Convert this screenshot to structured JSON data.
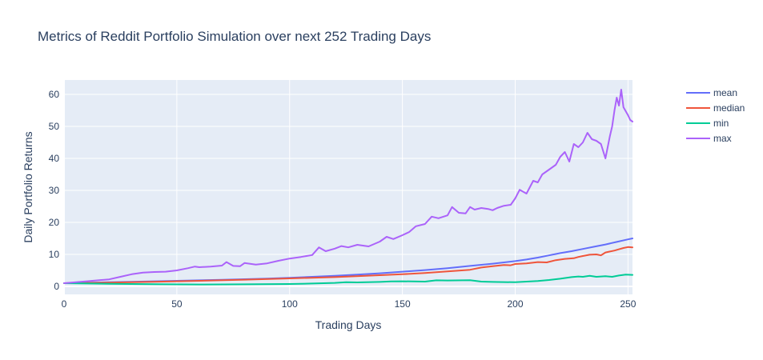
{
  "chart_data": {
    "type": "line",
    "title": "Metrics of Reddit Portfolio Simulation over next 252 Trading Days",
    "xlabel": "Trading Days",
    "ylabel": "Daily Portfolio Returns",
    "xlim": [
      0,
      252
    ],
    "ylim": [
      -2.5,
      64.5
    ],
    "xticks": [
      0,
      50,
      100,
      150,
      200,
      250
    ],
    "yticks": [
      0,
      10,
      20,
      30,
      40,
      50,
      60
    ],
    "grid": true,
    "legend_position": "top-right",
    "series": [
      {
        "name": "mean",
        "color": "#636efa",
        "x": [
          0,
          10,
          20,
          30,
          40,
          50,
          60,
          70,
          80,
          90,
          100,
          110,
          120,
          130,
          140,
          150,
          160,
          170,
          180,
          190,
          200,
          205,
          210,
          215,
          220,
          225,
          230,
          235,
          240,
          245,
          250,
          252
        ],
        "y": [
          1.0,
          1.15,
          1.3,
          1.45,
          1.6,
          1.75,
          1.9,
          2.05,
          2.25,
          2.45,
          2.7,
          3.0,
          3.3,
          3.7,
          4.1,
          4.6,
          5.1,
          5.7,
          6.4,
          7.1,
          7.9,
          8.4,
          9.0,
          9.7,
          10.4,
          11.0,
          11.7,
          12.4,
          13.1,
          13.9,
          14.7,
          15.0
        ]
      },
      {
        "name": "median",
        "color": "#ef553b",
        "x": [
          0,
          20,
          40,
          60,
          80,
          100,
          120,
          140,
          150,
          160,
          170,
          180,
          185,
          190,
          195,
          198,
          200,
          205,
          210,
          214,
          218,
          222,
          226,
          228,
          230,
          233,
          236,
          238,
          240,
          242,
          244,
          246,
          248,
          250,
          252
        ],
        "y": [
          1.0,
          1.2,
          1.45,
          1.75,
          2.1,
          2.5,
          2.9,
          3.5,
          3.8,
          4.2,
          4.7,
          5.2,
          5.9,
          6.3,
          6.7,
          6.6,
          7.0,
          7.2,
          7.6,
          7.5,
          8.2,
          8.6,
          8.8,
          9.2,
          9.5,
          9.9,
          10.0,
          9.7,
          10.6,
          10.9,
          11.2,
          11.6,
          12.0,
          12.3,
          12.2
        ]
      },
      {
        "name": "min",
        "color": "#00cc96",
        "x": [
          0,
          20,
          40,
          60,
          80,
          100,
          110,
          120,
          125,
          130,
          140,
          145,
          150,
          160,
          165,
          170,
          180,
          185,
          190,
          200,
          205,
          210,
          215,
          220,
          225,
          228,
          230,
          233,
          236,
          240,
          243,
          246,
          249,
          252
        ],
        "y": [
          1.0,
          0.8,
          0.7,
          0.6,
          0.65,
          0.75,
          0.9,
          1.1,
          1.3,
          1.25,
          1.4,
          1.55,
          1.6,
          1.5,
          1.9,
          1.85,
          1.95,
          1.5,
          1.4,
          1.3,
          1.5,
          1.7,
          2.0,
          2.4,
          2.9,
          3.1,
          3.0,
          3.3,
          3.0,
          3.2,
          3.0,
          3.4,
          3.7,
          3.6
        ]
      },
      {
        "name": "max",
        "color": "#ab63fa",
        "x": [
          0,
          10,
          20,
          25,
          30,
          35,
          40,
          45,
          50,
          55,
          58,
          60,
          65,
          70,
          72,
          75,
          78,
          80,
          85,
          90,
          95,
          100,
          105,
          110,
          113,
          116,
          120,
          123,
          126,
          130,
          135,
          140,
          143,
          146,
          150,
          153,
          156,
          160,
          163,
          166,
          170,
          172,
          175,
          178,
          180,
          182,
          185,
          188,
          190,
          192,
          195,
          198,
          200,
          202,
          205,
          208,
          210,
          212,
          215,
          218,
          220,
          222,
          224,
          226,
          228,
          230,
          232,
          234,
          236,
          238,
          240,
          242,
          243,
          244,
          245,
          246,
          247,
          248,
          250,
          251,
          252
        ],
        "y": [
          1.0,
          1.6,
          2.2,
          3.0,
          3.8,
          4.3,
          4.5,
          4.6,
          5.0,
          5.7,
          6.2,
          6.0,
          6.2,
          6.5,
          7.6,
          6.4,
          6.3,
          7.3,
          6.8,
          7.2,
          8.0,
          8.7,
          9.2,
          9.8,
          12.2,
          11.0,
          11.8,
          12.6,
          12.2,
          13.0,
          12.5,
          14.0,
          15.5,
          14.8,
          16.0,
          17.0,
          18.8,
          19.5,
          21.8,
          21.3,
          22.2,
          24.8,
          23.0,
          22.8,
          24.8,
          24.0,
          24.5,
          24.2,
          23.8,
          24.5,
          25.2,
          25.5,
          27.5,
          30.2,
          29.0,
          33.0,
          32.5,
          35.0,
          36.5,
          38.0,
          40.5,
          42.0,
          39.0,
          44.5,
          43.5,
          45.0,
          48.0,
          46.0,
          45.5,
          44.5,
          40.0,
          47.0,
          50.0,
          55.0,
          59.0,
          56.5,
          61.5,
          56.0,
          53.5,
          52.0,
          51.5
        ]
      }
    ]
  }
}
